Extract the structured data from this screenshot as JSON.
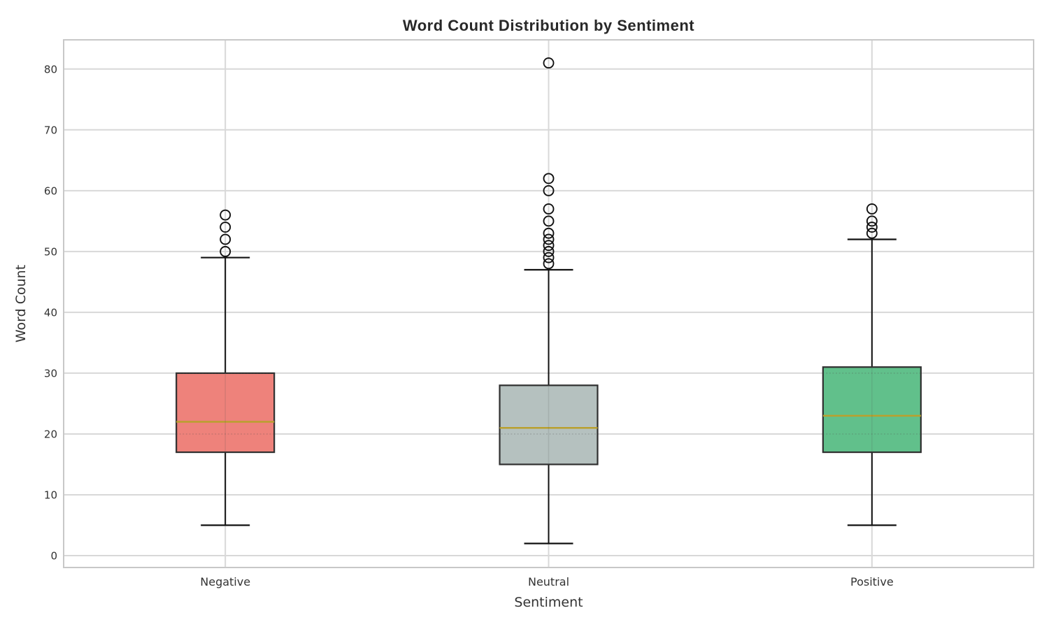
{
  "chart_data": {
    "type": "box",
    "title": "Word Count Distribution by Sentiment",
    "xlabel": "Sentiment",
    "ylabel": "Word Count",
    "categories": [
      "Negative",
      "Neutral",
      "Positive"
    ],
    "yticks": [
      0,
      10,
      20,
      30,
      40,
      50,
      60,
      70,
      80
    ],
    "ylim": [
      -1.95,
      84.8
    ],
    "grid": true,
    "legend": "none",
    "series": [
      {
        "label": "Negative",
        "box_color": "#ee827b",
        "q1": 17,
        "median": 22,
        "q3": 30,
        "whisker_low": 5,
        "whisker_high": 49,
        "outliers": [
          50,
          52,
          54,
          56
        ]
      },
      {
        "label": "Neutral",
        "box_color": "#b5c1bf",
        "q1": 15,
        "median": 21,
        "q3": 28,
        "whisker_low": 2,
        "whisker_high": 47,
        "outliers": [
          48,
          49,
          50,
          51,
          52,
          53,
          55,
          57,
          60,
          62,
          81
        ]
      },
      {
        "label": "Positive",
        "box_color": "#61c08b",
        "q1": 17,
        "median": 23,
        "q3": 31,
        "whisker_low": 5,
        "whisker_high": 52,
        "outliers": [
          53,
          54,
          55,
          57
        ]
      }
    ],
    "style": {
      "median_color": "#b9a02e",
      "box_edge_color": "#2f2f2f",
      "whisker_color": "#111111",
      "outlier_edge_color": "#111111",
      "grid_color": "#d8d8d8",
      "spine_color": "#c8c8c8",
      "text_color": "#333333",
      "title_color": "#282828",
      "background_color": "#ffffff"
    }
  }
}
